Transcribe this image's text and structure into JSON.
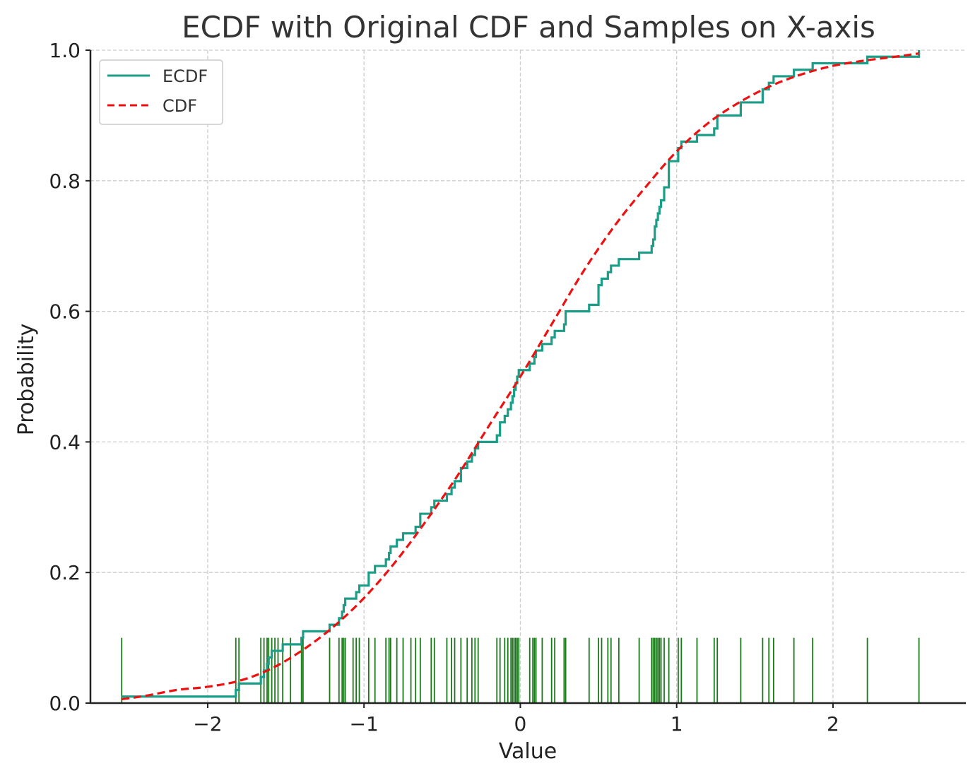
{
  "chart_data": {
    "type": "line",
    "title": "ECDF with Original CDF and Samples on X-axis",
    "xlabel": "Value",
    "ylabel": "Probability",
    "xlim": [
      -2.75,
      2.85
    ],
    "ylim": [
      0,
      1
    ],
    "x_ticks": [
      -2,
      -1,
      0,
      1,
      2
    ],
    "x_tick_labels": [
      "−2",
      "−1",
      "0",
      "1",
      "2"
    ],
    "y_ticks": [
      0,
      0.2,
      0.4,
      0.6,
      0.8,
      1.0
    ],
    "y_tick_labels": [
      "0.0",
      "0.2",
      "0.4",
      "0.6",
      "0.8",
      "1.0"
    ],
    "grid": true,
    "legend_position": "top-left",
    "colors": {
      "ecdf": "#1a9e87",
      "cdf": "#ee1111",
      "rug": "#1a7a1a"
    },
    "series": [
      {
        "name": "ECDF",
        "style": "solid step"
      },
      {
        "name": "CDF",
        "style": "dashed"
      }
    ],
    "samples": [
      -2.55,
      -1.82,
      -1.8,
      -1.66,
      -1.64,
      -1.62,
      -1.61,
      -1.59,
      -1.57,
      -1.55,
      -1.52,
      -1.47,
      -1.4,
      -1.39,
      -1.22,
      -1.16,
      -1.14,
      -1.13,
      -1.12,
      -1.07,
      -1.05,
      -1.03,
      -0.97,
      -0.93,
      -0.86,
      -0.84,
      -0.83,
      -0.79,
      -0.75,
      -0.7,
      -0.67,
      -0.64,
      -0.57,
      -0.55,
      -0.47,
      -0.44,
      -0.42,
      -0.38,
      -0.34,
      -0.31,
      -0.29,
      -0.27,
      -0.15,
      -0.13,
      -0.1,
      -0.08,
      -0.06,
      -0.05,
      -0.04,
      -0.03,
      -0.02,
      -0.01,
      0.06,
      0.08,
      0.09,
      0.1,
      0.14,
      0.2,
      0.22,
      0.28,
      0.29,
      0.44,
      0.5,
      0.52,
      0.56,
      0.58,
      0.63,
      0.76,
      0.84,
      0.85,
      0.86,
      0.87,
      0.88,
      0.89,
      0.9,
      0.92,
      0.95,
      1.01,
      1.03,
      1.13,
      1.24,
      1.26,
      1.41,
      1.55,
      1.59,
      1.62,
      1.75,
      1.87,
      2.22,
      2.55
    ],
    "ecdf": {
      "x": [
        -2.55,
        -1.82,
        -1.8,
        -1.66,
        -1.64,
        -1.62,
        -1.61,
        -1.59,
        -1.57,
        -1.55,
        -1.52,
        -1.47,
        -1.4,
        -1.39,
        -1.22,
        -1.16,
        -1.14,
        -1.13,
        -1.12,
        -1.07,
        -1.05,
        -1.03,
        -0.97,
        -0.93,
        -0.86,
        -0.84,
        -0.83,
        -0.79,
        -0.75,
        -0.7,
        -0.67,
        -0.64,
        -0.57,
        -0.55,
        -0.47,
        -0.44,
        -0.42,
        -0.38,
        -0.34,
        -0.31,
        -0.29,
        -0.27,
        -0.15,
        -0.13,
        -0.1,
        -0.08,
        -0.06,
        -0.05,
        -0.04,
        -0.03,
        -0.02,
        -0.01,
        0.06,
        0.08,
        0.09,
        0.1,
        0.14,
        0.2,
        0.22,
        0.28,
        0.29,
        0.44,
        0.5,
        0.52,
        0.56,
        0.58,
        0.63,
        0.76,
        0.84,
        0.85,
        0.86,
        0.87,
        0.88,
        0.89,
        0.9,
        0.92,
        0.95,
        1.01,
        1.03,
        1.13,
        1.24,
        1.26,
        1.41,
        1.55,
        1.59,
        1.62,
        1.75,
        1.87,
        2.22,
        2.55
      ],
      "y": [
        0.01,
        0.02,
        0.03,
        0.04,
        0.05,
        0.06,
        0.07,
        0.08,
        0.08,
        0.08,
        0.09,
        0.09,
        0.1,
        0.11,
        0.12,
        0.13,
        0.14,
        0.15,
        0.16,
        0.16,
        0.17,
        0.18,
        0.2,
        0.21,
        0.22,
        0.23,
        0.24,
        0.25,
        0.26,
        0.26,
        0.27,
        0.29,
        0.3,
        0.31,
        0.32,
        0.33,
        0.34,
        0.36,
        0.37,
        0.38,
        0.39,
        0.4,
        0.41,
        0.43,
        0.44,
        0.45,
        0.46,
        0.47,
        0.48,
        0.49,
        0.5,
        0.51,
        0.52,
        0.52,
        0.53,
        0.54,
        0.55,
        0.56,
        0.57,
        0.58,
        0.6,
        0.61,
        0.64,
        0.65,
        0.66,
        0.67,
        0.68,
        0.69,
        0.7,
        0.71,
        0.73,
        0.74,
        0.75,
        0.76,
        0.77,
        0.79,
        0.83,
        0.85,
        0.86,
        0.87,
        0.88,
        0.9,
        0.92,
        0.94,
        0.95,
        0.96,
        0.97,
        0.98,
        0.99,
        1.0
      ]
    },
    "cdf": {
      "x": [
        -2.55,
        -2.4,
        -2.2,
        -2.0,
        -1.8,
        -1.6,
        -1.4,
        -1.2,
        -1.0,
        -0.8,
        -0.6,
        -0.4,
        -0.2,
        0.0,
        0.2,
        0.4,
        0.6,
        0.8,
        1.0,
        1.2,
        1.4,
        1.6,
        1.8,
        2.0,
        2.2,
        2.4,
        2.55
      ],
      "y": [
        0.006,
        0.011,
        0.02,
        0.025,
        0.034,
        0.052,
        0.08,
        0.116,
        0.161,
        0.216,
        0.28,
        0.349,
        0.425,
        0.5,
        0.58,
        0.66,
        0.73,
        0.79,
        0.845,
        0.888,
        0.92,
        0.945,
        0.963,
        0.976,
        0.984,
        0.99,
        0.995
      ]
    },
    "rug_height": 0.1
  }
}
